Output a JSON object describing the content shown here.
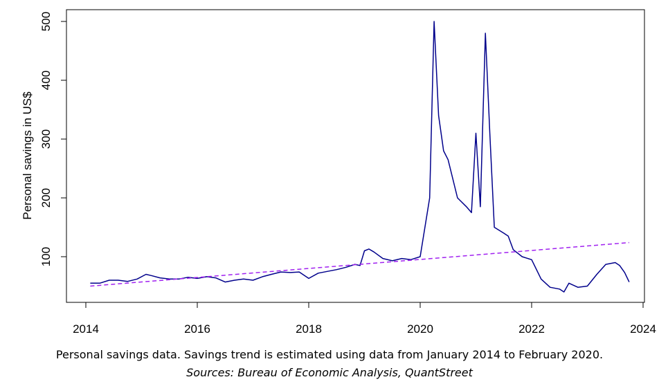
{
  "caption": {
    "line1": "Personal savings data. Savings trend is estimated using data from January 2014 to February 2020.",
    "line2": "Sources: Bureau of Economic Analysis, QuantStreet"
  },
  "chart_data": {
    "type": "line",
    "title": "",
    "xlabel": "",
    "ylabel": "Personal savings in US$",
    "xlim": [
      2014.0,
      2024.0
    ],
    "ylim": [
      30,
      505
    ],
    "x_ticks": [
      2014,
      2016,
      2018,
      2020,
      2022,
      2024
    ],
    "y_ticks": [
      100,
      200,
      300,
      400,
      500
    ],
    "grid": false,
    "legend": "none",
    "series": [
      {
        "color": "#00008b",
        "style": "solid",
        "x": [
          2014.08,
          2014.25,
          2014.42,
          2014.58,
          2014.75,
          2014.92,
          2015.08,
          2015.17,
          2015.33,
          2015.5,
          2015.67,
          2015.83,
          2016.0,
          2016.17,
          2016.33,
          2016.5,
          2016.67,
          2016.83,
          2017.0,
          2017.17,
          2017.33,
          2017.5,
          2017.67,
          2017.83,
          2018.0,
          2018.17,
          2018.33,
          2018.5,
          2018.67,
          2018.83,
          2018.92,
          2019.0,
          2019.08,
          2019.17,
          2019.33,
          2019.5,
          2019.67,
          2019.83,
          2020.0,
          2020.17,
          2020.25,
          2020.33,
          2020.42,
          2020.5,
          2020.67,
          2020.83,
          2020.92,
          2021.0,
          2021.08,
          2021.17,
          2021.25,
          2021.33,
          2021.5,
          2021.58,
          2021.67,
          2021.83,
          2022.0,
          2022.17,
          2022.33,
          2022.5,
          2022.58,
          2022.67,
          2022.83,
          2023.0,
          2023.17,
          2023.33,
          2023.5,
          2023.58,
          2023.67,
          2023.75
        ],
        "y": [
          55,
          55,
          60,
          60,
          58,
          62,
          70,
          68,
          64,
          62,
          62,
          65,
          63,
          66,
          64,
          57,
          60,
          62,
          60,
          66,
          70,
          74,
          73,
          74,
          63,
          72,
          75,
          78,
          82,
          87,
          85,
          110,
          113,
          108,
          97,
          93,
          97,
          95,
          100,
          200,
          500,
          340,
          280,
          265,
          200,
          185,
          175,
          310,
          185,
          480,
          310,
          150,
          140,
          135,
          112,
          100,
          95,
          62,
          48,
          45,
          40,
          55,
          48,
          50,
          70,
          87,
          90,
          85,
          73,
          57
        ]
      },
      {
        "color": "#a020f0",
        "style": "dashed",
        "x": [
          2014.08,
          2023.75
        ],
        "y": [
          50,
          124
        ]
      }
    ]
  }
}
